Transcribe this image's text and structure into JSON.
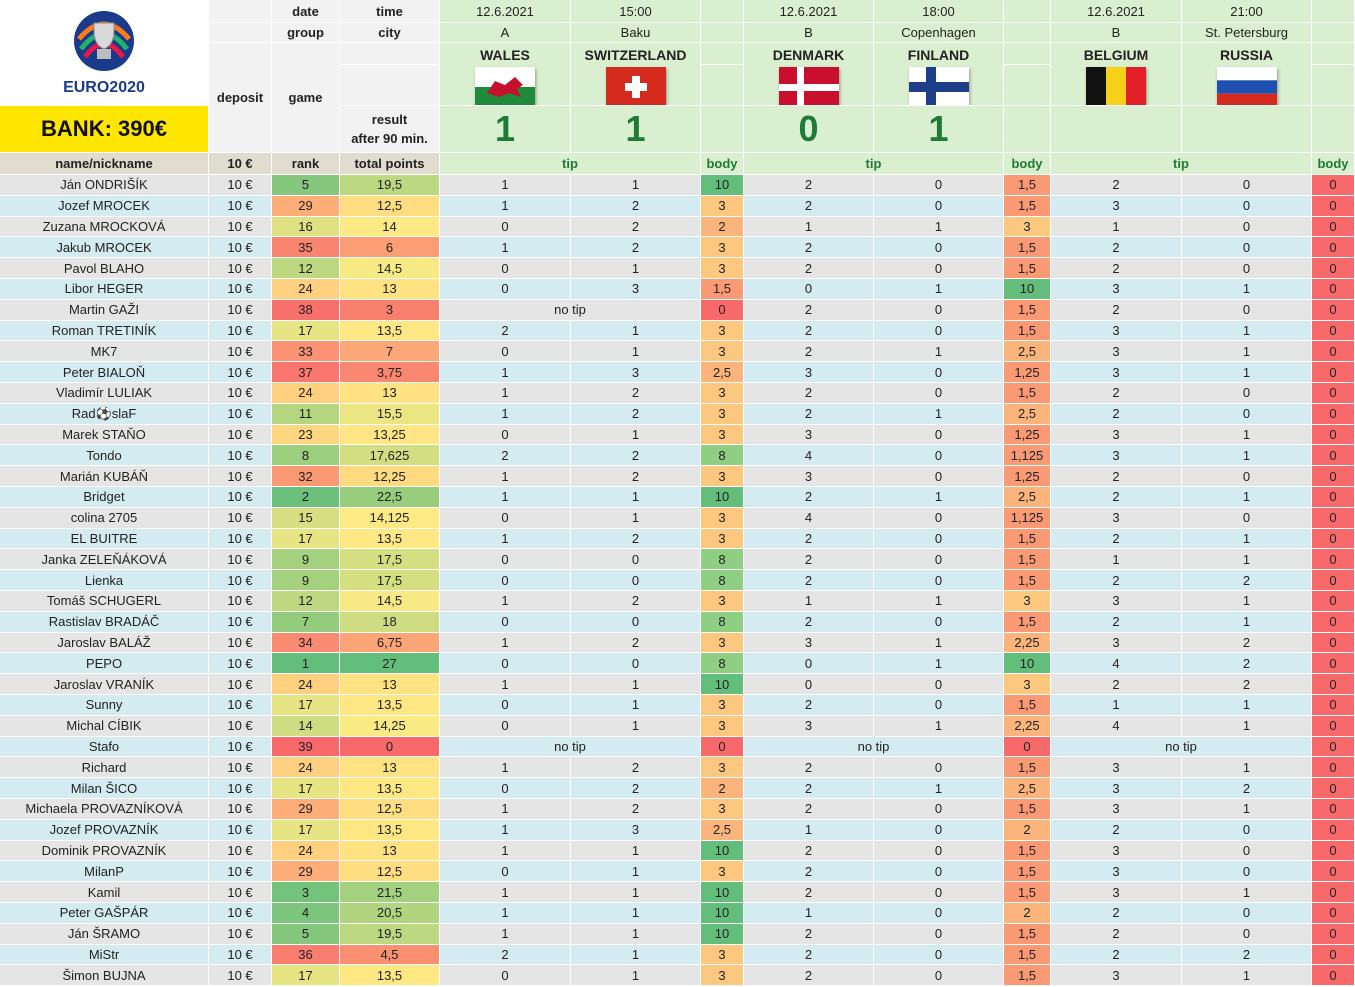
{
  "header": {
    "bank": "BANK: 390€",
    "logo_text": "EURO2020",
    "deposit": "deposit",
    "game": "game",
    "date_label": "date",
    "time_label": "time",
    "group_label": "group",
    "city_label": "city",
    "result_label_1": "result",
    "result_label_2": "after 90 min.",
    "name_col": "name/nickname",
    "deposit_value": "10 €",
    "rank_col": "rank",
    "total_col": "total points",
    "tip_label": "tip",
    "body_label": "body",
    "no_tip": "no tip"
  },
  "matches": [
    {
      "date": "12.6.2021",
      "time": "15:00",
      "group": "A",
      "city": "Baku",
      "team1": "WALES",
      "team2": "SWITZERLAND",
      "flag1": "wales-flag",
      "flag2": "switzerland-flag",
      "score1": "1",
      "score2": "1"
    },
    {
      "date": "12.6.2021",
      "time": "18:00",
      "group": "B",
      "city": "Copenhagen",
      "team1": "DENMARK",
      "team2": "FINLAND",
      "flag1": "denmark-flag",
      "flag2": "finland-flag",
      "score1": "0",
      "score2": "1"
    },
    {
      "date": "12.6.2021",
      "time": "21:00",
      "group": "B",
      "city": "St. Petersburg",
      "team1": "BELGIUM",
      "team2": "RUSSIA",
      "flag1": "belgium-flag",
      "flag2": "russia-flag",
      "score1": "",
      "score2": ""
    }
  ],
  "colors": {
    "row_a": "#e5e5e5",
    "row_b": "#d4ebf2",
    "green_header": "#d9efcf"
  },
  "players": [
    {
      "name": "Ján ONDRIŠÍK",
      "deposit": "10 €",
      "rank": "5",
      "total": "19,5",
      "m": [
        [
          "1",
          "1",
          "10"
        ],
        [
          "2",
          "0",
          "1,5"
        ],
        [
          "2",
          "0",
          "0"
        ]
      ]
    },
    {
      "name": "Jozef MROCEK",
      "deposit": "10 €",
      "rank": "29",
      "total": "12,5",
      "m": [
        [
          "1",
          "2",
          "3"
        ],
        [
          "2",
          "0",
          "1,5"
        ],
        [
          "3",
          "0",
          "0"
        ]
      ]
    },
    {
      "name": "Zuzana MROCKOVÁ",
      "deposit": "10 €",
      "rank": "16",
      "total": "14",
      "m": [
        [
          "0",
          "2",
          "2"
        ],
        [
          "1",
          "1",
          "3"
        ],
        [
          "1",
          "0",
          "0"
        ]
      ]
    },
    {
      "name": "Jakub MROCEK",
      "deposit": "10 €",
      "rank": "35",
      "total": "6",
      "m": [
        [
          "1",
          "2",
          "3"
        ],
        [
          "2",
          "0",
          "1,5"
        ],
        [
          "2",
          "0",
          "0"
        ]
      ]
    },
    {
      "name": "Pavol BLAHO",
      "deposit": "10 €",
      "rank": "12",
      "total": "14,5",
      "m": [
        [
          "0",
          "1",
          "3"
        ],
        [
          "2",
          "0",
          "1,5"
        ],
        [
          "2",
          "0",
          "0"
        ]
      ]
    },
    {
      "name": "Libor HEGER",
      "deposit": "10 €",
      "rank": "24",
      "total": "13",
      "m": [
        [
          "0",
          "3",
          "1,5"
        ],
        [
          "0",
          "1",
          "10"
        ],
        [
          "3",
          "1",
          "0"
        ]
      ]
    },
    {
      "name": "Martin GAŽI",
      "deposit": "10 €",
      "rank": "38",
      "total": "3",
      "m": [
        [
          "no tip",
          "",
          "0"
        ],
        [
          "2",
          "0",
          "1,5"
        ],
        [
          "2",
          "0",
          "0"
        ]
      ]
    },
    {
      "name": "Roman TRETINÍK",
      "deposit": "10 €",
      "rank": "17",
      "total": "13,5",
      "m": [
        [
          "2",
          "1",
          "3"
        ],
        [
          "2",
          "0",
          "1,5"
        ],
        [
          "3",
          "1",
          "0"
        ]
      ]
    },
    {
      "name": "MK7",
      "deposit": "10 €",
      "rank": "33",
      "total": "7",
      "m": [
        [
          "0",
          "1",
          "3"
        ],
        [
          "2",
          "1",
          "2,5"
        ],
        [
          "3",
          "1",
          "0"
        ]
      ]
    },
    {
      "name": "Peter BIALOŇ",
      "deposit": "10 €",
      "rank": "37",
      "total": "3,75",
      "m": [
        [
          "1",
          "3",
          "2,5"
        ],
        [
          "3",
          "0",
          "1,25"
        ],
        [
          "3",
          "1",
          "0"
        ]
      ]
    },
    {
      "name": "Vladimír LULIAK",
      "deposit": "10 €",
      "rank": "24",
      "total": "13",
      "m": [
        [
          "1",
          "2",
          "3"
        ],
        [
          "2",
          "0",
          "1,5"
        ],
        [
          "2",
          "0",
          "0"
        ]
      ]
    },
    {
      "name": "Rad⚽slaF",
      "deposit": "10 €",
      "rank": "11",
      "total": "15,5",
      "m": [
        [
          "1",
          "2",
          "3"
        ],
        [
          "2",
          "1",
          "2,5"
        ],
        [
          "2",
          "0",
          "0"
        ]
      ]
    },
    {
      "name": "Marek STAŇO",
      "deposit": "10 €",
      "rank": "23",
      "total": "13,25",
      "m": [
        [
          "0",
          "1",
          "3"
        ],
        [
          "3",
          "0",
          "1,25"
        ],
        [
          "3",
          "1",
          "0"
        ]
      ]
    },
    {
      "name": "Tondo",
      "deposit": "10 €",
      "rank": "8",
      "total": "17,625",
      "m": [
        [
          "2",
          "2",
          "8"
        ],
        [
          "4",
          "0",
          "1,125"
        ],
        [
          "3",
          "1",
          "0"
        ]
      ]
    },
    {
      "name": "Marián KUBÁŇ",
      "deposit": "10 €",
      "rank": "32",
      "total": "12,25",
      "m": [
        [
          "1",
          "2",
          "3"
        ],
        [
          "3",
          "0",
          "1,25"
        ],
        [
          "2",
          "0",
          "0"
        ]
      ]
    },
    {
      "name": "Bridget",
      "deposit": "10 €",
      "rank": "2",
      "total": "22,5",
      "m": [
        [
          "1",
          "1",
          "10"
        ],
        [
          "2",
          "1",
          "2,5"
        ],
        [
          "2",
          "1",
          "0"
        ]
      ]
    },
    {
      "name": "colina 2705",
      "deposit": "10 €",
      "rank": "15",
      "total": "14,125",
      "m": [
        [
          "0",
          "1",
          "3"
        ],
        [
          "4",
          "0",
          "1,125"
        ],
        [
          "3",
          "0",
          "0"
        ]
      ]
    },
    {
      "name": "EL BUITRE",
      "deposit": "10 €",
      "rank": "17",
      "total": "13,5",
      "m": [
        [
          "1",
          "2",
          "3"
        ],
        [
          "2",
          "0",
          "1,5"
        ],
        [
          "2",
          "1",
          "0"
        ]
      ]
    },
    {
      "name": "Janka ZELEŇÁKOVÁ",
      "deposit": "10 €",
      "rank": "9",
      "total": "17,5",
      "m": [
        [
          "0",
          "0",
          "8"
        ],
        [
          "2",
          "0",
          "1,5"
        ],
        [
          "1",
          "1",
          "0"
        ]
      ]
    },
    {
      "name": "Lienka",
      "deposit": "10 €",
      "rank": "9",
      "total": "17,5",
      "m": [
        [
          "0",
          "0",
          "8"
        ],
        [
          "2",
          "0",
          "1,5"
        ],
        [
          "2",
          "2",
          "0"
        ]
      ]
    },
    {
      "name": "Tomáš SCHUGERL",
      "deposit": "10 €",
      "rank": "12",
      "total": "14,5",
      "m": [
        [
          "1",
          "2",
          "3"
        ],
        [
          "1",
          "1",
          "3"
        ],
        [
          "3",
          "1",
          "0"
        ]
      ]
    },
    {
      "name": "Rastislav BRADÁČ",
      "deposit": "10 €",
      "rank": "7",
      "total": "18",
      "m": [
        [
          "0",
          "0",
          "8"
        ],
        [
          "2",
          "0",
          "1,5"
        ],
        [
          "2",
          "1",
          "0"
        ]
      ]
    },
    {
      "name": "Jaroslav BALÁŽ",
      "deposit": "10 €",
      "rank": "34",
      "total": "6,75",
      "m": [
        [
          "1",
          "2",
          "3"
        ],
        [
          "3",
          "1",
          "2,25"
        ],
        [
          "3",
          "2",
          "0"
        ]
      ]
    },
    {
      "name": "PEPO",
      "deposit": "10 €",
      "rank": "1",
      "total": "27",
      "m": [
        [
          "0",
          "0",
          "8"
        ],
        [
          "0",
          "1",
          "10"
        ],
        [
          "4",
          "2",
          "0"
        ]
      ]
    },
    {
      "name": "Jaroslav VRANÍK",
      "deposit": "10 €",
      "rank": "24",
      "total": "13",
      "m": [
        [
          "1",
          "1",
          "10"
        ],
        [
          "0",
          "0",
          "3"
        ],
        [
          "2",
          "2",
          "0"
        ]
      ]
    },
    {
      "name": "Sunny",
      "deposit": "10 €",
      "rank": "17",
      "total": "13,5",
      "m": [
        [
          "0",
          "1",
          "3"
        ],
        [
          "2",
          "0",
          "1,5"
        ],
        [
          "1",
          "1",
          "0"
        ]
      ]
    },
    {
      "name": "Michal CÍBIK",
      "deposit": "10 €",
      "rank": "14",
      "total": "14,25",
      "m": [
        [
          "0",
          "1",
          "3"
        ],
        [
          "3",
          "1",
          "2,25"
        ],
        [
          "4",
          "1",
          "0"
        ]
      ]
    },
    {
      "name": "Stafo",
      "deposit": "10 €",
      "rank": "39",
      "total": "0",
      "m": [
        [
          "no tip",
          "",
          "0"
        ],
        [
          "no tip",
          "",
          "0"
        ],
        [
          "no tip",
          "",
          "0"
        ]
      ]
    },
    {
      "name": "Richard",
      "deposit": "10 €",
      "rank": "24",
      "total": "13",
      "m": [
        [
          "1",
          "2",
          "3"
        ],
        [
          "2",
          "0",
          "1,5"
        ],
        [
          "3",
          "1",
          "0"
        ]
      ]
    },
    {
      "name": "Milan ŠICO",
      "deposit": "10 €",
      "rank": "17",
      "total": "13,5",
      "m": [
        [
          "0",
          "2",
          "2"
        ],
        [
          "2",
          "1",
          "2,5"
        ],
        [
          "3",
          "2",
          "0"
        ]
      ]
    },
    {
      "name": "Michaela PROVAZNÍKOVÁ",
      "deposit": "10 €",
      "rank": "29",
      "total": "12,5",
      "m": [
        [
          "1",
          "2",
          "3"
        ],
        [
          "2",
          "0",
          "1,5"
        ],
        [
          "3",
          "1",
          "0"
        ]
      ]
    },
    {
      "name": "Jozef PROVAZNÍK",
      "deposit": "10 €",
      "rank": "17",
      "total": "13,5",
      "m": [
        [
          "1",
          "3",
          "2,5"
        ],
        [
          "1",
          "0",
          "2"
        ],
        [
          "2",
          "0",
          "0"
        ]
      ]
    },
    {
      "name": "Dominik PROVAZNÍK",
      "deposit": "10 €",
      "rank": "24",
      "total": "13",
      "m": [
        [
          "1",
          "1",
          "10"
        ],
        [
          "2",
          "0",
          "1,5"
        ],
        [
          "3",
          "0",
          "0"
        ]
      ]
    },
    {
      "name": "MilanP",
      "deposit": "10 €",
      "rank": "29",
      "total": "12,5",
      "m": [
        [
          "0",
          "1",
          "3"
        ],
        [
          "2",
          "0",
          "1,5"
        ],
        [
          "3",
          "0",
          "0"
        ]
      ]
    },
    {
      "name": "Kamil",
      "deposit": "10 €",
      "rank": "3",
      "total": "21,5",
      "m": [
        [
          "1",
          "1",
          "10"
        ],
        [
          "2",
          "0",
          "1,5"
        ],
        [
          "3",
          "1",
          "0"
        ]
      ]
    },
    {
      "name": "Peter GAŠPÁR",
      "deposit": "10 €",
      "rank": "4",
      "total": "20,5",
      "m": [
        [
          "1",
          "1",
          "10"
        ],
        [
          "1",
          "0",
          "2"
        ],
        [
          "2",
          "0",
          "0"
        ]
      ]
    },
    {
      "name": "Ján ŠRAMO",
      "deposit": "10 €",
      "rank": "5",
      "total": "19,5",
      "m": [
        [
          "1",
          "1",
          "10"
        ],
        [
          "2",
          "0",
          "1,5"
        ],
        [
          "2",
          "0",
          "0"
        ]
      ]
    },
    {
      "name": "MiStr",
      "deposit": "10 €",
      "rank": "36",
      "total": "4,5",
      "m": [
        [
          "2",
          "1",
          "3"
        ],
        [
          "2",
          "0",
          "1,5"
        ],
        [
          "2",
          "2",
          "0"
        ]
      ]
    },
    {
      "name": "Šimon BUJNA",
      "deposit": "10 €",
      "rank": "17",
      "total": "13,5",
      "m": [
        [
          "0",
          "1",
          "3"
        ],
        [
          "2",
          "0",
          "1,5"
        ],
        [
          "3",
          "1",
          "0"
        ]
      ]
    }
  ]
}
